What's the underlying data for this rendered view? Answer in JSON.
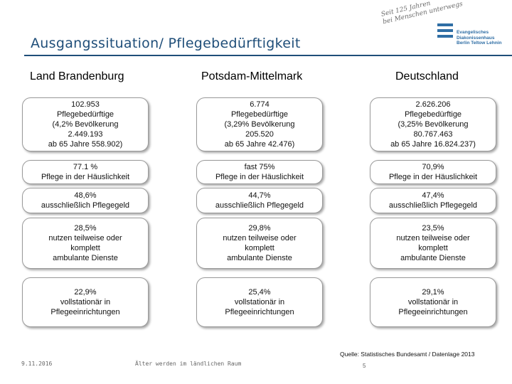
{
  "header": {
    "title": "Ausgangssituation/ Pflegebedürftigkeit",
    "logo_script": "Seit 125 Jahren\nbei Menschen unterwegs",
    "logo_org": "Evangelisches\nDiakonissenhaus\nBerlin Teltow Lehnin",
    "logo_color": "#2f6ea5"
  },
  "columns": [
    {
      "heading": "Land Brandenburg",
      "boxes": [
        [
          "102.953",
          "Pflegebedürftige",
          "(4,2% Bevölkerung",
          "2.449.193",
          "ab 65 Jahre 558.902)"
        ],
        [
          "77.1 %",
          "Pflege in der Häuslichkeit"
        ],
        [
          "48,6%",
          "ausschließlich Pflegegeld"
        ],
        [
          "28,5%",
          "nutzen teilweise oder",
          "komplett",
          "ambulante Dienste"
        ],
        [
          "22,9%",
          "vollstationär in",
          "Pflegeeinrichtungen"
        ]
      ]
    },
    {
      "heading": "Potsdam-Mittelmark",
      "boxes": [
        [
          "6.774",
          "Pflegebedürftige",
          "(3,29% Bevölkerung",
          "205.520",
          "ab 65 Jahre 42.476)"
        ],
        [
          "fast 75%",
          "Pflege in der Häuslichkeit"
        ],
        [
          "44,7%",
          "ausschließlich Pflegegeld"
        ],
        [
          "29,8%",
          "nutzen teilweise oder",
          "komplett",
          "ambulante Dienste"
        ],
        [
          "25,4%",
          "vollstationär in",
          "Pflegeeinrichtungen"
        ]
      ]
    },
    {
      "heading": "Deutschland",
      "boxes": [
        [
          "2.626.206",
          "Pflegebedürftige",
          "(3,25% Bevölkerung",
          "80.767.463",
          "ab 65 Jahre 16.824.237)"
        ],
        [
          "70,9%",
          "Pflege in der Häuslichkeit"
        ],
        [
          "47,4%",
          "ausschließlich Pflegegeld"
        ],
        [
          "23,5%",
          "nutzen teilweise oder",
          "komplett",
          "ambulante Dienste"
        ],
        [
          "29,1%",
          "vollstationär in",
          "Pflegeeinrichtungen"
        ]
      ]
    }
  ],
  "footer": {
    "source": "Quelle: Statistisches Bundesamt / Datenlage 2013",
    "date": "9.11.2016",
    "topic": "Älter werden im ländlichen Raum",
    "page": "5"
  }
}
